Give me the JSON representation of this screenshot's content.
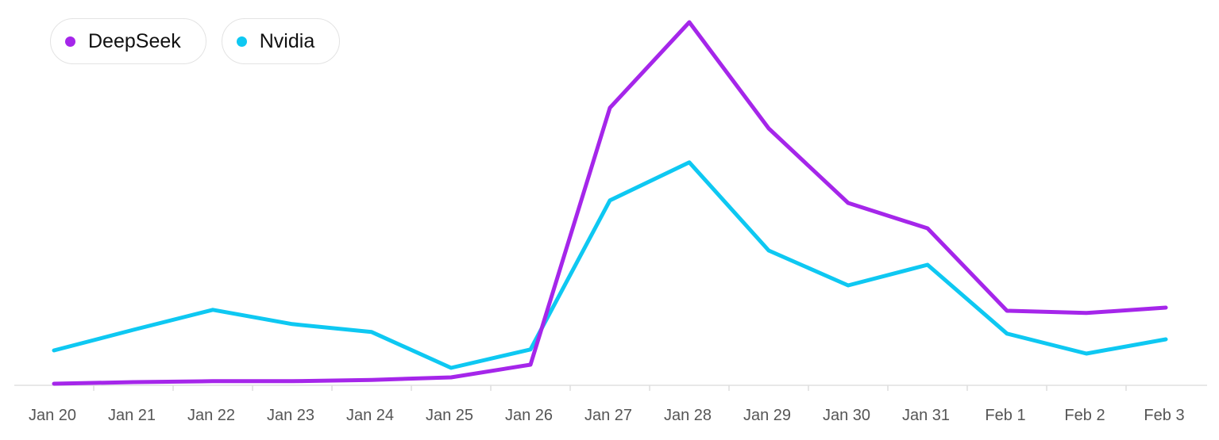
{
  "chart_data": {
    "type": "line",
    "categories": [
      "Jan 20",
      "Jan 21",
      "Jan 22",
      "Jan 23",
      "Jan 24",
      "Jan 25",
      "Jan 26",
      "Jan 27",
      "Jan 28",
      "Jan 29",
      "Jan 30",
      "Jan 31",
      "Feb 1",
      "Feb 2",
      "Feb 3"
    ],
    "series": [
      {
        "name": "DeepSeek",
        "color": "#a526ea",
        "values": [
          0,
          0.5,
          0.8,
          0.8,
          1.2,
          2,
          6,
          87,
          114,
          80.5,
          57,
          49,
          23,
          22.3,
          24
        ]
      },
      {
        "name": "Nvidia",
        "color": "#0ec8f2",
        "values": [
          10.5,
          17,
          23.3,
          18.8,
          16.3,
          5,
          10.8,
          57.8,
          69.8,
          42,
          31,
          37.5,
          15.8,
          9.5,
          14
        ]
      }
    ],
    "ylim": [
      0,
      120
    ],
    "grid": false,
    "legend": "top-left",
    "title": "",
    "xlabel": "",
    "ylabel": ""
  }
}
